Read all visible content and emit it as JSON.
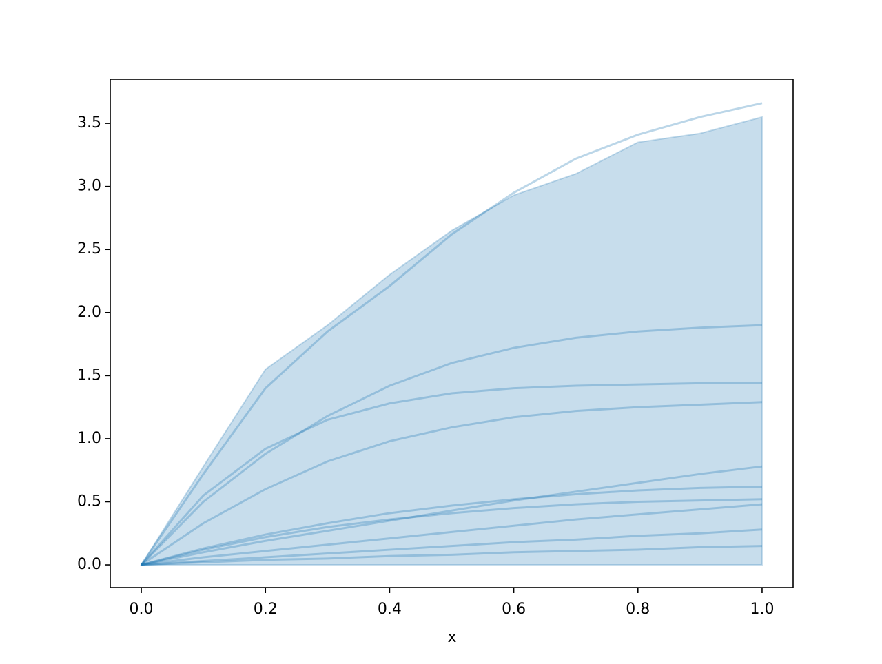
{
  "chart_data": {
    "type": "line",
    "xlabel": "x",
    "x": [
      0,
      0.1,
      0.2,
      0.3,
      0.4,
      0.5,
      0.6,
      0.7,
      0.8,
      0.9,
      1.0
    ],
    "series": [
      {
        "color": "#1f77b4",
        "values": [
          0,
          0.72,
          1.4,
          1.85,
          2.21,
          2.62,
          2.95,
          3.22,
          3.41,
          3.55,
          3.66
        ]
      },
      {
        "color": "#1f77b4",
        "values": [
          0,
          0.5,
          0.88,
          1.18,
          1.42,
          1.6,
          1.72,
          1.8,
          1.85,
          1.88,
          1.9
        ]
      },
      {
        "color": "#1f77b4",
        "values": [
          0,
          0.55,
          0.92,
          1.15,
          1.28,
          1.36,
          1.4,
          1.42,
          1.43,
          1.44,
          1.44
        ]
      },
      {
        "color": "#1f77b4",
        "values": [
          0,
          0.33,
          0.6,
          0.82,
          0.98,
          1.09,
          1.17,
          1.22,
          1.25,
          1.27,
          1.29
        ]
      },
      {
        "color": "#1f77b4",
        "values": [
          0,
          0.1,
          0.19,
          0.27,
          0.35,
          0.43,
          0.51,
          0.58,
          0.65,
          0.72,
          0.78
        ]
      },
      {
        "color": "#1f77b4",
        "values": [
          0,
          0.13,
          0.24,
          0.33,
          0.41,
          0.47,
          0.52,
          0.56,
          0.59,
          0.61,
          0.62
        ]
      },
      {
        "color": "#1f77b4",
        "values": [
          0,
          0.12,
          0.22,
          0.3,
          0.36,
          0.41,
          0.45,
          0.48,
          0.5,
          0.51,
          0.52
        ]
      },
      {
        "color": "#1f77b4",
        "values": [
          0,
          0.06,
          0.11,
          0.16,
          0.21,
          0.26,
          0.31,
          0.36,
          0.4,
          0.44,
          0.48
        ]
      },
      {
        "color": "#1f77b4",
        "values": [
          0,
          0.03,
          0.06,
          0.09,
          0.12,
          0.15,
          0.18,
          0.2,
          0.23,
          0.25,
          0.28
        ]
      },
      {
        "color": "#1f77b4",
        "values": [
          0,
          0.02,
          0.04,
          0.05,
          0.07,
          0.08,
          0.1,
          0.11,
          0.12,
          0.14,
          0.15
        ]
      }
    ],
    "line_alpha": 0.3,
    "band": {
      "color": "#1f77b4",
      "alpha": 0.25,
      "lower": [
        0,
        0,
        0,
        0,
        0,
        0,
        0,
        0,
        0,
        0,
        0
      ],
      "upper": [
        0,
        0.78,
        1.55,
        1.9,
        2.3,
        2.65,
        2.93,
        3.1,
        3.35,
        3.42,
        3.55
      ]
    },
    "xlim": [
      -0.05,
      1.05
    ],
    "ylim": [
      -0.18,
      3.85
    ],
    "xticks": [
      {
        "value": 0,
        "label": "0.0"
      },
      0.2,
      0.4,
      0.6,
      0.8,
      {
        "value": 1,
        "label": "1.0"
      }
    ],
    "yticks": [
      {
        "value": 0,
        "label": "0.0"
      },
      0.5,
      {
        "value": 1,
        "label": "1.0"
      },
      1.5,
      {
        "value": 2,
        "label": "2.0"
      },
      2.5,
      {
        "value": 3,
        "label": "3.0"
      },
      3.5
    ]
  }
}
